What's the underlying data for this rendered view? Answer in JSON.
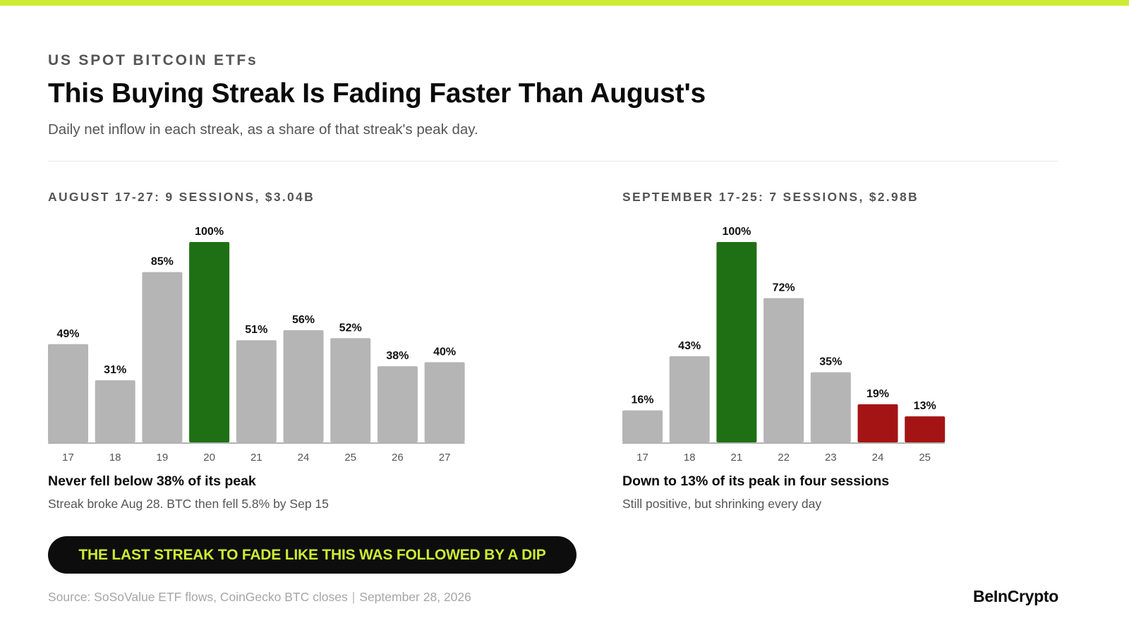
{
  "header": {
    "kicker": "US SPOT BITCOIN ETFs",
    "title": "This Buying Streak Is Fading Faster Than August's",
    "subtitle": "Daily net inflow in each streak, as a share of that streak's peak day."
  },
  "colors": {
    "accent": "#cdec33",
    "bar_default": "#b5b5b5",
    "bar_peak": "#1f7014",
    "bar_fading": "#a51414",
    "baseline": "#999999"
  },
  "chart_data": [
    {
      "type": "bar",
      "title": "AUGUST 17-27: 9 SESSIONS, $3.04B",
      "categories": [
        "17",
        "18",
        "19",
        "20",
        "21",
        "24",
        "25",
        "26",
        "27"
      ],
      "values": [
        49,
        31,
        85,
        100,
        51,
        56,
        52,
        38,
        40
      ],
      "data_labels": [
        "49%",
        "31%",
        "85%",
        "100%",
        "51%",
        "56%",
        "52%",
        "38%",
        "40%"
      ],
      "bar_colors": [
        "default",
        "default",
        "default",
        "peak",
        "default",
        "default",
        "default",
        "default",
        "default"
      ],
      "ylim": [
        0,
        100
      ],
      "grid": false,
      "xlabel": "",
      "ylabel": "",
      "note_title": "Never fell below 38% of its peak",
      "note_sub": "Streak broke Aug 28. BTC then fell 5.8% by Sep 15"
    },
    {
      "type": "bar",
      "title": "SEPTEMBER 17-25: 7 SESSIONS, $2.98B",
      "categories": [
        "17",
        "18",
        "21",
        "22",
        "23",
        "24",
        "25"
      ],
      "values": [
        16,
        43,
        100,
        72,
        35,
        19,
        13
      ],
      "data_labels": [
        "16%",
        "43%",
        "100%",
        "72%",
        "35%",
        "19%",
        "13%"
      ],
      "bar_colors": [
        "default",
        "default",
        "peak",
        "default",
        "default",
        "fading",
        "fading"
      ],
      "ylim": [
        0,
        100
      ],
      "grid": false,
      "xlabel": "",
      "ylabel": "",
      "note_title": "Down to 13% of its peak in four sessions",
      "note_sub": "Still positive, but shrinking every day"
    }
  ],
  "callout": {
    "text": "THE LAST STREAK TO FADE LIKE THIS WAS FOLLOWED BY A DIP"
  },
  "footer": {
    "source": "Source: SoSoValue ETF flows, CoinGecko BTC closes",
    "separator": "|",
    "date": "September 28, 2026",
    "brand": "BeInCrypto"
  }
}
